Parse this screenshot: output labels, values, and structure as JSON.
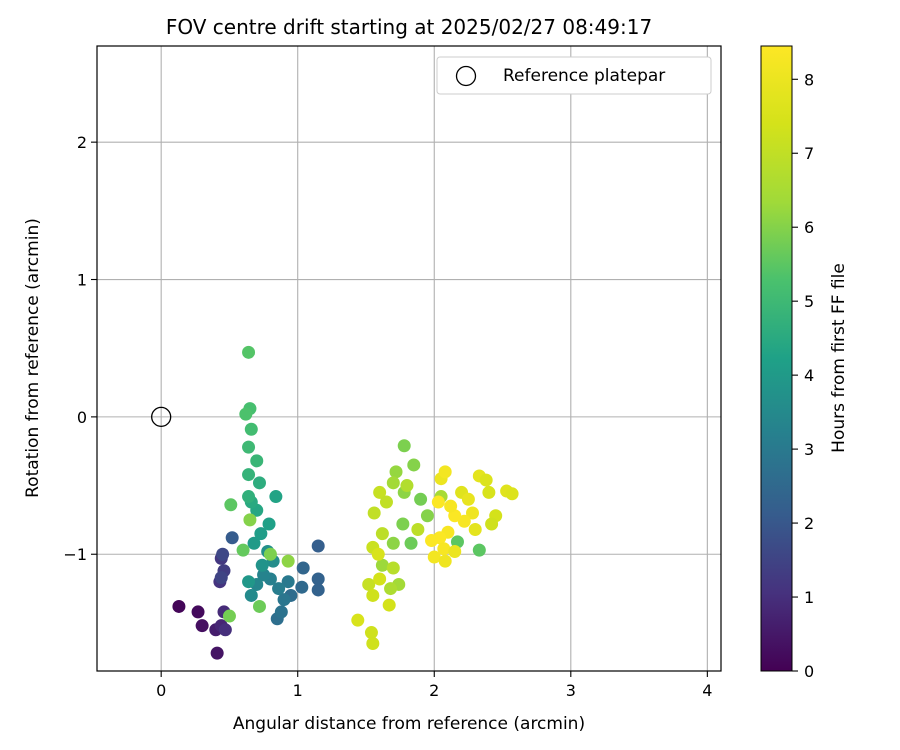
{
  "chart_data": {
    "type": "scatter",
    "title": "FOV centre drift starting at 2025/02/27 08:49:17",
    "xlabel": "Angular distance from reference (arcmin)",
    "ylabel": "Rotation from reference (arcmin)",
    "xlim": [
      -0.47,
      4.1
    ],
    "ylim": [
      -1.85,
      2.7
    ],
    "xticks": [
      0,
      1,
      2,
      3,
      4
    ],
    "yticks": [
      -1,
      0,
      1,
      2
    ],
    "grid": true,
    "legend": {
      "placement": "top-right",
      "entries": [
        "Reference platepar"
      ]
    },
    "reference_point": {
      "x": 0,
      "y": 0
    },
    "colorbar": {
      "label": "Hours from first FF file",
      "range": [
        0,
        8.45
      ],
      "ticks": [
        0,
        1,
        2,
        3,
        4,
        5,
        6,
        7,
        8
      ],
      "colormap": "viridis"
    },
    "points": [
      {
        "x": 0.13,
        "y": -1.38,
        "h": 0.1
      },
      {
        "x": 0.27,
        "y": -1.42,
        "h": 0.2
      },
      {
        "x": 0.3,
        "y": -1.52,
        "h": 0.3
      },
      {
        "x": 0.41,
        "y": -1.72,
        "h": 0.4
      },
      {
        "x": 0.4,
        "y": -1.55,
        "h": 0.6
      },
      {
        "x": 0.44,
        "y": -1.52,
        "h": 0.8
      },
      {
        "x": 0.46,
        "y": -1.42,
        "h": 0.9
      },
      {
        "x": 0.47,
        "y": -1.55,
        "h": 1.0
      },
      {
        "x": 0.43,
        "y": -1.2,
        "h": 1.1
      },
      {
        "x": 0.44,
        "y": -1.03,
        "h": 1.2
      },
      {
        "x": 0.46,
        "y": -1.12,
        "h": 1.3
      },
      {
        "x": 0.44,
        "y": -1.17,
        "h": 1.5
      },
      {
        "x": 0.45,
        "y": -1.0,
        "h": 1.6
      },
      {
        "x": 0.52,
        "y": -0.88,
        "h": 2.1
      },
      {
        "x": 1.15,
        "y": -0.94,
        "h": 2.2
      },
      {
        "x": 1.15,
        "y": -1.18,
        "h": 2.3
      },
      {
        "x": 1.15,
        "y": -1.26,
        "h": 2.3
      },
      {
        "x": 1.04,
        "y": -1.1,
        "h": 2.4
      },
      {
        "x": 1.03,
        "y": -1.24,
        "h": 2.5
      },
      {
        "x": 0.95,
        "y": -1.3,
        "h": 2.6
      },
      {
        "x": 0.85,
        "y": -1.47,
        "h": 2.7
      },
      {
        "x": 0.88,
        "y": -1.42,
        "h": 2.8
      },
      {
        "x": 0.9,
        "y": -1.33,
        "h": 2.9
      },
      {
        "x": 0.93,
        "y": -1.2,
        "h": 3.0
      },
      {
        "x": 0.86,
        "y": -1.25,
        "h": 3.1
      },
      {
        "x": 0.8,
        "y": -1.18,
        "h": 3.2
      },
      {
        "x": 0.75,
        "y": -1.15,
        "h": 3.3
      },
      {
        "x": 0.7,
        "y": -1.22,
        "h": 3.4
      },
      {
        "x": 0.66,
        "y": -1.3,
        "h": 3.5
      },
      {
        "x": 0.82,
        "y": -1.05,
        "h": 3.6
      },
      {
        "x": 0.78,
        "y": -0.98,
        "h": 3.7
      },
      {
        "x": 0.74,
        "y": -1.08,
        "h": 3.8
      },
      {
        "x": 0.64,
        "y": -1.2,
        "h": 3.9
      },
      {
        "x": 0.68,
        "y": -0.92,
        "h": 4.0
      },
      {
        "x": 0.73,
        "y": -0.85,
        "h": 4.1
      },
      {
        "x": 0.79,
        "y": -0.78,
        "h": 4.2
      },
      {
        "x": 0.84,
        "y": -0.58,
        "h": 4.3
      },
      {
        "x": 0.7,
        "y": -0.68,
        "h": 4.4
      },
      {
        "x": 0.66,
        "y": -0.62,
        "h": 4.5
      },
      {
        "x": 0.72,
        "y": -0.48,
        "h": 4.6
      },
      {
        "x": 0.64,
        "y": -0.58,
        "h": 4.7
      },
      {
        "x": 0.64,
        "y": -0.42,
        "h": 4.8
      },
      {
        "x": 0.7,
        "y": -0.32,
        "h": 4.9
      },
      {
        "x": 0.64,
        "y": -0.22,
        "h": 5.0
      },
      {
        "x": 0.66,
        "y": -0.09,
        "h": 5.1
      },
      {
        "x": 0.65,
        "y": 0.06,
        "h": 5.2
      },
      {
        "x": 0.62,
        "y": 0.02,
        "h": 5.3
      },
      {
        "x": 0.64,
        "y": 0.47,
        "h": 5.4
      },
      {
        "x": 0.51,
        "y": -0.64,
        "h": 5.5
      },
      {
        "x": 0.6,
        "y": -0.97,
        "h": 5.6
      },
      {
        "x": 0.72,
        "y": -1.38,
        "h": 5.7
      },
      {
        "x": 0.5,
        "y": -1.45,
        "h": 5.8
      },
      {
        "x": 0.8,
        "y": -1.0,
        "h": 5.9
      },
      {
        "x": 0.93,
        "y": -1.05,
        "h": 6.1
      },
      {
        "x": 0.65,
        "y": -0.75,
        "h": 6.0
      },
      {
        "x": 2.33,
        "y": -0.97,
        "h": 5.5
      },
      {
        "x": 2.17,
        "y": -0.91,
        "h": 5.5
      },
      {
        "x": 1.78,
        "y": -0.21,
        "h": 5.9
      },
      {
        "x": 1.85,
        "y": -0.35,
        "h": 6.0
      },
      {
        "x": 1.72,
        "y": -0.4,
        "h": 6.2
      },
      {
        "x": 1.78,
        "y": -0.55,
        "h": 6.1
      },
      {
        "x": 1.9,
        "y": -0.6,
        "h": 5.8
      },
      {
        "x": 1.95,
        "y": -0.72,
        "h": 6.0
      },
      {
        "x": 2.05,
        "y": -0.58,
        "h": 6.5
      },
      {
        "x": 1.83,
        "y": -0.92,
        "h": 5.7
      },
      {
        "x": 1.77,
        "y": -0.78,
        "h": 5.9
      },
      {
        "x": 1.7,
        "y": -0.92,
        "h": 6.1
      },
      {
        "x": 1.62,
        "y": -1.08,
        "h": 6.3
      },
      {
        "x": 1.74,
        "y": -1.22,
        "h": 6.4
      },
      {
        "x": 1.68,
        "y": -1.25,
        "h": 6.6
      },
      {
        "x": 1.7,
        "y": -1.1,
        "h": 6.8
      },
      {
        "x": 1.62,
        "y": -0.85,
        "h": 6.9
      },
      {
        "x": 1.56,
        "y": -0.7,
        "h": 7.0
      },
      {
        "x": 1.6,
        "y": -0.55,
        "h": 7.1
      },
      {
        "x": 1.65,
        "y": -0.62,
        "h": 7.0
      },
      {
        "x": 1.55,
        "y": -0.95,
        "h": 7.2
      },
      {
        "x": 1.52,
        "y": -1.22,
        "h": 7.1
      },
      {
        "x": 1.55,
        "y": -1.3,
        "h": 7.3
      },
      {
        "x": 1.6,
        "y": -1.18,
        "h": 7.4
      },
      {
        "x": 1.67,
        "y": -1.37,
        "h": 7.4
      },
      {
        "x": 1.44,
        "y": -1.48,
        "h": 7.5
      },
      {
        "x": 1.54,
        "y": -1.57,
        "h": 7.3
      },
      {
        "x": 1.55,
        "y": -1.65,
        "h": 7.3
      },
      {
        "x": 1.7,
        "y": -0.48,
        "h": 6.4
      },
      {
        "x": 1.8,
        "y": -0.5,
        "h": 6.7
      },
      {
        "x": 1.88,
        "y": -0.82,
        "h": 6.9
      },
      {
        "x": 1.59,
        "y": -1.0,
        "h": 7.5
      },
      {
        "x": 2.05,
        "y": -0.45,
        "h": 8.0
      },
      {
        "x": 2.08,
        "y": -0.4,
        "h": 8.2
      },
      {
        "x": 2.2,
        "y": -0.55,
        "h": 7.7
      },
      {
        "x": 2.25,
        "y": -0.6,
        "h": 7.9
      },
      {
        "x": 2.33,
        "y": -0.43,
        "h": 7.8
      },
      {
        "x": 2.38,
        "y": -0.46,
        "h": 7.6
      },
      {
        "x": 2.4,
        "y": -0.55,
        "h": 7.5
      },
      {
        "x": 2.45,
        "y": -0.72,
        "h": 7.4
      },
      {
        "x": 2.42,
        "y": -0.78,
        "h": 7.3
      },
      {
        "x": 2.53,
        "y": -0.54,
        "h": 7.7
      },
      {
        "x": 2.57,
        "y": -0.56,
        "h": 7.6
      },
      {
        "x": 2.3,
        "y": -0.82,
        "h": 7.8
      },
      {
        "x": 2.28,
        "y": -0.7,
        "h": 8.1
      },
      {
        "x": 2.22,
        "y": -0.76,
        "h": 8.3
      },
      {
        "x": 2.15,
        "y": -0.72,
        "h": 8.4
      },
      {
        "x": 2.1,
        "y": -0.84,
        "h": 8.3
      },
      {
        "x": 2.04,
        "y": -0.88,
        "h": 8.4
      },
      {
        "x": 2.0,
        "y": -1.02,
        "h": 8.2
      },
      {
        "x": 2.07,
        "y": -0.96,
        "h": 8.3
      },
      {
        "x": 2.15,
        "y": -0.98,
        "h": 8.0
      },
      {
        "x": 2.08,
        "y": -1.05,
        "h": 8.1
      },
      {
        "x": 1.98,
        "y": -0.9,
        "h": 8.4
      },
      {
        "x": 2.12,
        "y": -0.65,
        "h": 8.3
      },
      {
        "x": 2.03,
        "y": -0.62,
        "h": 8.4
      }
    ]
  }
}
